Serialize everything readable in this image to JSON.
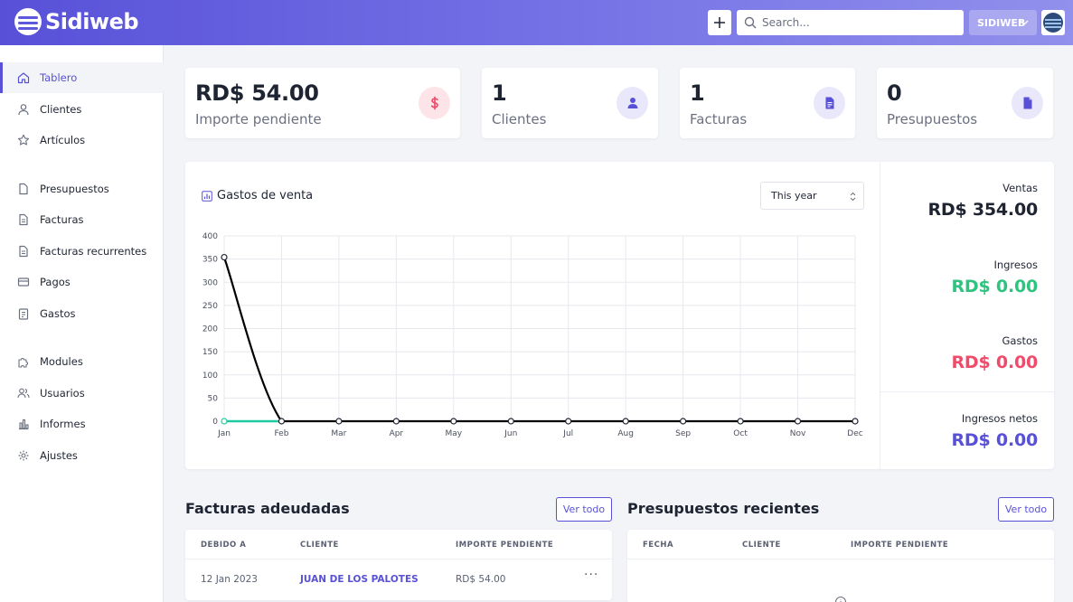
{
  "header": {
    "app_name": "Sidiweb",
    "search_placeholder": "Search...",
    "company": "SIDIWEB"
  },
  "sidebar": {
    "items": [
      {
        "label": "Tablero",
        "icon": "home-icon",
        "active": true
      },
      {
        "label": "Clientes",
        "icon": "user-icon"
      },
      {
        "label": "Artículos",
        "icon": "star-icon"
      },
      {
        "label": "Presupuestos",
        "icon": "document-icon"
      },
      {
        "label": "Facturas",
        "icon": "file-text-icon"
      },
      {
        "label": "Facturas recurrentes",
        "icon": "file-text-icon"
      },
      {
        "label": "Pagos",
        "icon": "credit-card-icon"
      },
      {
        "label": "Gastos",
        "icon": "clipboard-icon"
      },
      {
        "label": "Modules",
        "icon": "puzzle-icon"
      },
      {
        "label": "Usuarios",
        "icon": "users-icon"
      },
      {
        "label": "Informes",
        "icon": "chart-bar-icon"
      },
      {
        "label": "Ajustes",
        "icon": "gear-icon"
      }
    ]
  },
  "stats": [
    {
      "value": "RD$ 54.00",
      "label": "Importe pendiente",
      "icon": "dollar-icon",
      "color": "#f04b6a",
      "bg": "#fde4e8"
    },
    {
      "value": "1",
      "label": "Clientes",
      "icon": "user-solid-icon",
      "color": "#5851d8",
      "bg": "#e9e8fa"
    },
    {
      "value": "1",
      "label": "Facturas",
      "icon": "invoice-icon",
      "color": "#5851d8",
      "bg": "#e9e8fa"
    },
    {
      "value": "0",
      "label": "Presupuestos",
      "icon": "estimate-icon",
      "color": "#5851d8",
      "bg": "#e9e8fa"
    }
  ],
  "chart_panel": {
    "title": "Gastos de venta",
    "period": "This year"
  },
  "chart_data": {
    "type": "line",
    "categories": [
      "Jan",
      "Feb",
      "Mar",
      "Apr",
      "May",
      "Jun",
      "Jul",
      "Aug",
      "Sep",
      "Oct",
      "Nov",
      "Dec"
    ],
    "series": [
      {
        "values": [
          354,
          0,
          0,
          0,
          0,
          0,
          0,
          0,
          0,
          0,
          0,
          0
        ],
        "color": "#000000"
      },
      {
        "values": [
          0,
          0,
          0,
          0,
          0,
          0,
          0,
          0,
          0,
          0,
          0,
          0
        ],
        "color": "#1ec9a0"
      }
    ],
    "yticks": [
      0,
      50,
      100,
      150,
      200,
      250,
      300,
      350,
      400
    ],
    "ylim": [
      0,
      400
    ],
    "grid": true
  },
  "summary": [
    {
      "label": "Ventas",
      "value": "RD$ 354.00",
      "color": "#1f2433"
    },
    {
      "label": "Ingresos",
      "value": "RD$ 0.00",
      "color": "#2ec47f"
    },
    {
      "label": "Gastos",
      "value": "RD$ 0.00",
      "color": "#f04b6a"
    },
    {
      "label": "Ingresos netos",
      "value": "RD$ 0.00",
      "color": "#5851d8"
    }
  ],
  "due_invoices": {
    "title": "Facturas adeudadas",
    "view_all": "Ver todo",
    "columns": [
      "DEBIDO A",
      "CLIENTE",
      "IMPORTE PENDIENTE"
    ],
    "rows": [
      {
        "due": "12 Jan 2023",
        "client": "JUAN DE LOS PALOTES",
        "amount": "RD$ 54.00"
      }
    ]
  },
  "recent_estimates": {
    "title": "Presupuestos recientes",
    "view_all": "Ver todo",
    "columns": [
      "FECHA",
      "CLIENTE",
      "IMPORTE PENDIENTE"
    ]
  }
}
